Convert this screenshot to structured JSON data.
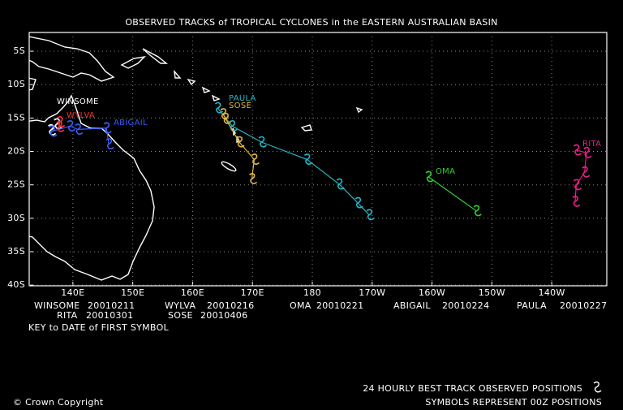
{
  "title": "OBSERVED TRACKS of TROPICAL CYCLONES in the EASTERN AUSTRALIAN BASIN",
  "map": {
    "lon_range": [
      132.7,
      229.2
    ],
    "lat_range": [
      -2.2,
      -40.1
    ],
    "lat_ticks": [
      {
        "value": -5,
        "label": "5S"
      },
      {
        "value": -10,
        "label": "10S"
      },
      {
        "value": -15,
        "label": "15S"
      },
      {
        "value": -20,
        "label": "20S"
      },
      {
        "value": -25,
        "label": "25S"
      },
      {
        "value": -30,
        "label": "30S"
      },
      {
        "value": -35,
        "label": "35S"
      },
      {
        "value": -40,
        "label": "40S"
      }
    ],
    "lon_ticks": [
      {
        "value": 140,
        "label": "140E"
      },
      {
        "value": 150,
        "label": "150E"
      },
      {
        "value": 160,
        "label": "160E"
      },
      {
        "value": 170,
        "label": "170E"
      },
      180,
      {
        "value": 190,
        "label": "170W"
      },
      {
        "value": 200,
        "label": "160W"
      },
      {
        "value": 210,
        "label": "150W"
      },
      {
        "value": 220,
        "label": "140W"
      }
    ],
    "grid": true
  },
  "storms": [
    {
      "name": "WINSOME",
      "date": "20010211",
      "color": "#ffffff",
      "lon": [
        136.3,
        137.3
      ],
      "lat": [
        -16.8,
        -15.9
      ]
    },
    {
      "name": "WYLVA",
      "date": "20010216",
      "color": "#ff3030",
      "lon": [
        137.8,
        137.7
      ],
      "lat": [
        -15.6,
        -16.3
      ]
    },
    {
      "name": "OMA",
      "date": "20010221",
      "color": "#30d030",
      "lon": [
        199.4,
        207.4
      ],
      "lat": [
        -23.8,
        -28.9
      ]
    },
    {
      "name": "ABIGAIL",
      "date": "20010224",
      "color": "#3a5cff",
      "lon": [
        136.5,
        139.5,
        140.8,
        145.6,
        146.0
      ],
      "lat": [
        -17.0,
        -16.2,
        -16.7,
        -16.5,
        -18.9
      ]
    },
    {
      "name": "PAULA",
      "date": "20010227",
      "color": "#20b8c8",
      "lon": [
        164.2,
        166.6,
        171.5,
        179.1,
        184.5,
        187.6,
        189.5
      ],
      "lat": [
        -13.5,
        -16.2,
        -18.6,
        -21.2,
        -24.9,
        -27.7,
        -29.5
      ]
    },
    {
      "name": "RITA",
      "date": "20010301",
      "color": "#e8208a",
      "lon": [
        224.1,
        225.8,
        225.5,
        224.1,
        223.9
      ],
      "lat": [
        -19.8,
        -20.2,
        -23.1,
        -25.0,
        -27.5
      ]
    },
    {
      "name": "SOSE",
      "date": "20010406",
      "color": "#e0b840",
      "lon": [
        165.1,
        165.5,
        167.8,
        170.3,
        169.9
      ],
      "lat": [
        -14.4,
        -15.1,
        -18.6,
        -21.2,
        -24.1
      ]
    }
  ],
  "key": "KEY to DATE of FIRST SYMBOL",
  "footer": {
    "line1": "24 HOURLY BEST TRACK OBSERVED POSITIONS",
    "line2": "SYMBOLS REPRESENT 00Z POSITIONS",
    "copyright": "© Crown Copyright"
  }
}
